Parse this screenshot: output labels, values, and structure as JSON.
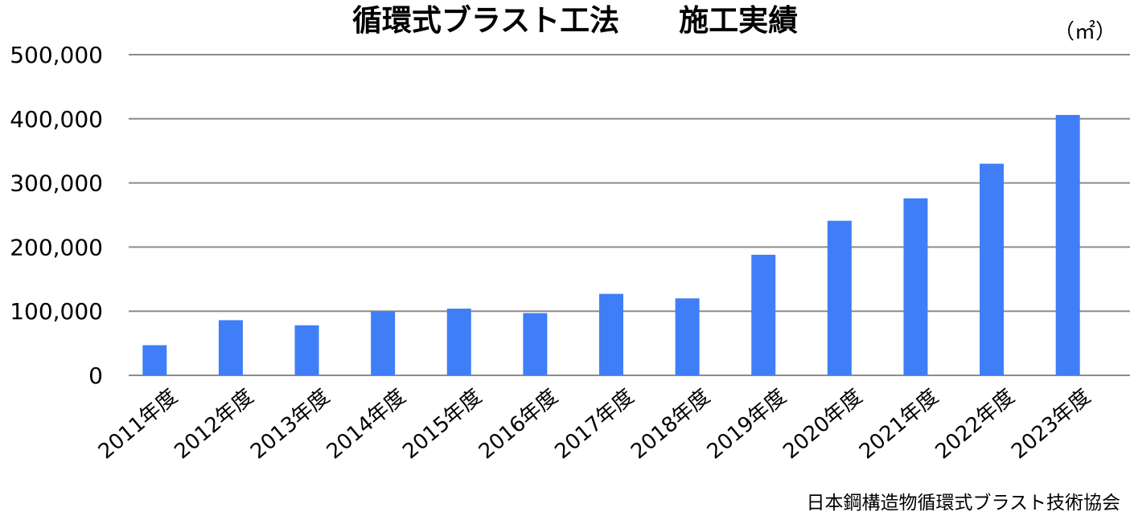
{
  "chart_data": {
    "type": "bar",
    "title": "循環式ブラスト工法　　施工実績",
    "unit_label": "（㎡）",
    "source": "日本鋼構造物循環式ブラスト技術協会",
    "categories": [
      "2011年度",
      "2012年度",
      "2013年度",
      "2014年度",
      "2015年度",
      "2016年度",
      "2017年度",
      "2018年度",
      "2019年度",
      "2020年度",
      "2021年度",
      "2022年度",
      "2023年度"
    ],
    "values": [
      47000,
      86000,
      78000,
      100000,
      104000,
      97000,
      127000,
      120000,
      188000,
      241000,
      276000,
      330000,
      406000
    ],
    "ylim": [
      0,
      500000
    ],
    "yticks": [
      0,
      100000,
      200000,
      300000,
      400000,
      500000
    ],
    "ytick_labels": [
      "0",
      "100,000",
      "200,000",
      "300,000",
      "400,000",
      "500,000"
    ],
    "xlabel": "",
    "ylabel": "",
    "grid": true,
    "legend": "none",
    "bar_color": "#3f7ef6",
    "grid_color": "#8c8c8c"
  }
}
